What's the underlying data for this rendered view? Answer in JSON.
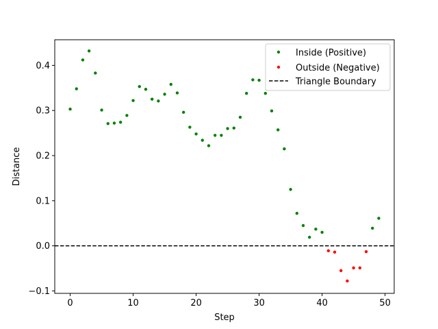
{
  "chart_data": {
    "type": "scatter",
    "title": "",
    "xlabel": "Step",
    "ylabel": "Distance",
    "xlim": [
      -2.45,
      51.45
    ],
    "ylim": [
      -0.1054,
      0.4568
    ],
    "xticks": [
      0,
      10,
      20,
      30,
      40,
      50
    ],
    "xtick_labels": [
      "0",
      "10",
      "20",
      "30",
      "40",
      "50"
    ],
    "yticks": [
      -0.1,
      0.0,
      0.1,
      0.2,
      0.3,
      0.4
    ],
    "ytick_labels": [
      "−0.1",
      "0.0",
      "0.1",
      "0.2",
      "0.3",
      "0.4"
    ],
    "grid": false,
    "legend_position": "top-right",
    "series": [
      {
        "name": "Inside (Positive)",
        "color": "#008000",
        "marker": "dot",
        "points": [
          [
            0,
            0.303
          ],
          [
            1,
            0.348
          ],
          [
            2,
            0.412
          ],
          [
            3,
            0.432
          ],
          [
            4,
            0.383
          ],
          [
            5,
            0.301
          ],
          [
            6,
            0.271
          ],
          [
            7,
            0.272
          ],
          [
            8,
            0.274
          ],
          [
            9,
            0.289
          ],
          [
            10,
            0.322
          ],
          [
            11,
            0.353
          ],
          [
            12,
            0.347
          ],
          [
            13,
            0.325
          ],
          [
            14,
            0.321
          ],
          [
            15,
            0.336
          ],
          [
            16,
            0.358
          ],
          [
            17,
            0.339
          ],
          [
            18,
            0.296
          ],
          [
            19,
            0.263
          ],
          [
            20,
            0.248
          ],
          [
            21,
            0.234
          ],
          [
            22,
            0.222
          ],
          [
            23,
            0.245
          ],
          [
            24,
            0.245
          ],
          [
            25,
            0.26
          ],
          [
            26,
            0.261
          ],
          [
            27,
            0.285
          ],
          [
            28,
            0.338
          ],
          [
            29,
            0.368
          ],
          [
            30,
            0.367
          ],
          [
            31,
            0.338
          ],
          [
            32,
            0.299
          ],
          [
            33,
            0.257
          ],
          [
            34,
            0.215
          ],
          [
            35,
            0.125
          ],
          [
            36,
            0.072
          ],
          [
            37,
            0.045
          ],
          [
            38,
            0.019
          ],
          [
            39,
            0.037
          ],
          [
            40,
            0.03
          ],
          [
            48,
            0.039
          ],
          [
            49,
            0.061
          ]
        ]
      },
      {
        "name": "Outside (Negative)",
        "color": "#ff0000",
        "marker": "dot",
        "points": [
          [
            41,
            -0.011
          ],
          [
            42,
            -0.014
          ],
          [
            43,
            -0.055
          ],
          [
            44,
            -0.078
          ],
          [
            45,
            -0.049
          ],
          [
            46,
            -0.049
          ],
          [
            47,
            -0.013
          ]
        ]
      }
    ],
    "reference_lines": [
      {
        "name": "Triangle Boundary",
        "y": 0.0,
        "color": "#000000",
        "style": "dashed"
      }
    ]
  }
}
